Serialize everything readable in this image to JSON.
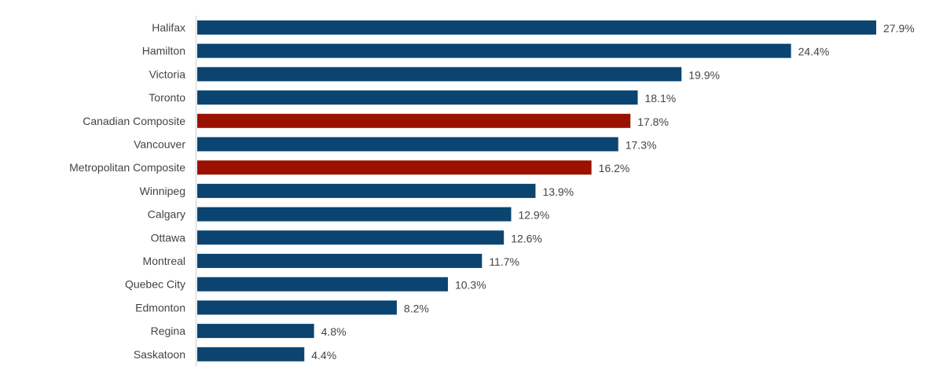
{
  "chart_data": {
    "type": "bar",
    "orientation": "horizontal",
    "categories": [
      "Halifax",
      "Hamilton",
      "Victoria",
      "Toronto",
      "Canadian Composite",
      "Vancouver",
      "Metropolitan Composite",
      "Winnipeg",
      "Calgary",
      "Ottawa",
      "Montreal",
      "Quebec City",
      "Edmonton",
      "Regina",
      "Saskatoon"
    ],
    "values": [
      27.9,
      24.4,
      19.9,
      18.1,
      17.8,
      17.3,
      16.2,
      13.9,
      12.9,
      12.6,
      11.7,
      10.3,
      8.2,
      4.8,
      4.4
    ],
    "data_labels": [
      "27.9%",
      "24.4%",
      "19.9%",
      "18.1%",
      "17.8%",
      "17.3%",
      "16.2%",
      "13.9%",
      "12.9%",
      "12.6%",
      "11.7%",
      "10.3%",
      "8.2%",
      "4.8%",
      "4.4%"
    ],
    "highlighted": [
      "Canadian Composite",
      "Metropolitan Composite"
    ],
    "colors": {
      "default": "#0b4470",
      "highlight": "#9a1100",
      "axis": "#d9d9d9"
    },
    "xlim": [
      0,
      28
    ],
    "grid": false,
    "legend": "none"
  }
}
